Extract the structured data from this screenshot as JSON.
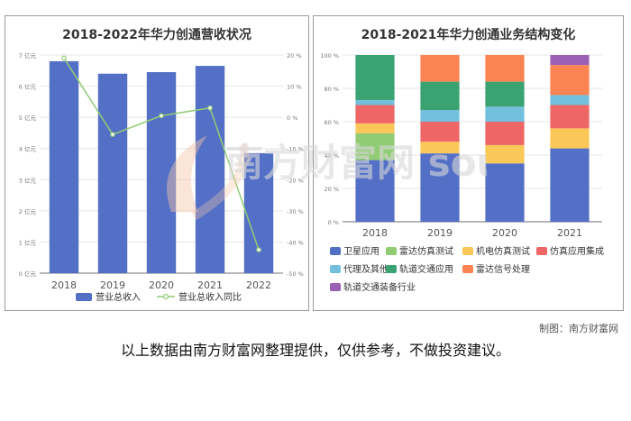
{
  "colors": {
    "bar": "#5470c6",
    "line": "#91cc75",
    "segments": [
      "#5470c6",
      "#91cc75",
      "#fac858",
      "#ee6666",
      "#73c0de",
      "#3ba272",
      "#fc8452",
      "#9a60b4"
    ]
  },
  "watermark": "南方财富网 southmoney.com",
  "credit": "制图：南方财富网",
  "disclaimer": "以上数据由南方财富网整理提供，仅供参考，不做投资建议。",
  "chart_data": [
    {
      "type": "bar",
      "title": "2018-2022年华力创通营收状况",
      "categories": [
        "2018",
        "2019",
        "2020",
        "2021",
        "2022"
      ],
      "y_ticks": [
        "0 亿元",
        "1 亿元",
        "2 亿元",
        "3 亿元",
        "4 亿元",
        "5 亿元",
        "6 亿元",
        "7 亿元"
      ],
      "y2_ticks": [
        "-50 %",
        "-40 %",
        "-30 %",
        "-20 %",
        "-10 %",
        "0 %",
        "10 %",
        "20 %"
      ],
      "ylim": [
        0,
        7
      ],
      "y2lim": [
        -50,
        20
      ],
      "series": [
        {
          "name": "营业总收入",
          "type": "bar",
          "axis": "left",
          "values": [
            6.8,
            6.4,
            6.45,
            6.65,
            3.85
          ]
        },
        {
          "name": "营业总收入同比",
          "type": "line",
          "axis": "right",
          "values": [
            19,
            -5.5,
            0.5,
            3,
            -42.5
          ]
        }
      ],
      "grid": true,
      "legend": "bottom"
    },
    {
      "type": "bar",
      "stacked": true,
      "title": "2018-2021年华力创通业务结构变化",
      "categories": [
        "2018",
        "2019",
        "2020",
        "2021"
      ],
      "y_ticks": [
        "0 %",
        "20 %",
        "40 %",
        "60 %",
        "80 %",
        "100 %"
      ],
      "ylim": [
        0,
        100
      ],
      "series": [
        {
          "name": "卫星应用",
          "values": [
            37,
            41,
            35,
            44
          ]
        },
        {
          "name": "雷达仿真测试",
          "values": [
            16,
            0,
            0,
            0
          ]
        },
        {
          "name": "机电仿真测试",
          "values": [
            6,
            7,
            11,
            12
          ]
        },
        {
          "name": "仿真应用集成",
          "values": [
            11,
            12,
            14,
            14
          ]
        },
        {
          "name": "代理及其他",
          "values": [
            3,
            7,
            9,
            6
          ]
        },
        {
          "name": "轨道交通应用",
          "values": [
            27,
            17,
            15,
            0
          ]
        },
        {
          "name": "雷达信号处理",
          "values": [
            0,
            16,
            16,
            18
          ]
        },
        {
          "name": "轨道交通装备行业",
          "values": [
            0,
            0,
            0,
            6
          ]
        }
      ],
      "grid": true,
      "legend": "bottom"
    }
  ]
}
